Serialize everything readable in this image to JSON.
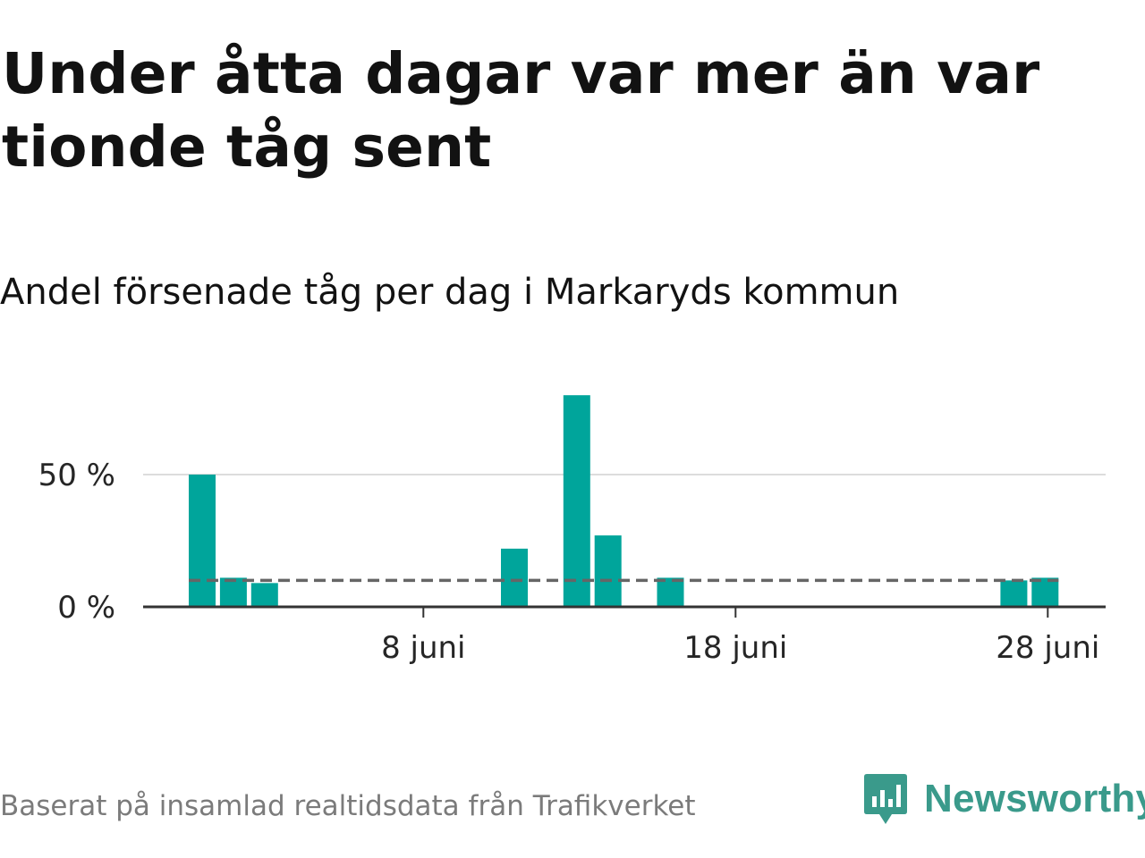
{
  "header": {
    "title": "Under åtta dagar var mer än var tionde tåg sent",
    "subtitle": "Andel försenade tåg per dag i Markaryds kommun"
  },
  "footer": {
    "source": "Baserat på insamlad realtidsdata från Trafikverket",
    "logo_text": "Newsworthy"
  },
  "colors": {
    "bar": "#00a59b",
    "reference_line": "#666666",
    "grid": "#dcdcdc",
    "axis": "#333333",
    "logo": "#3a9a8b"
  },
  "chart_data": {
    "type": "bar",
    "x_unit": "day of June",
    "x": [
      1,
      2,
      3,
      4,
      5,
      6,
      7,
      8,
      9,
      10,
      11,
      12,
      13,
      14,
      15,
      16,
      17,
      18,
      19,
      20,
      21,
      22,
      23,
      24,
      25,
      26,
      27,
      28,
      29,
      30
    ],
    "values": [
      50,
      11,
      9,
      0,
      0,
      0,
      0,
      0,
      0,
      0,
      22,
      0,
      80,
      27,
      0,
      11,
      0,
      0,
      0,
      0,
      0,
      0,
      0,
      0,
      0,
      0,
      10,
      11,
      0,
      0
    ],
    "reference_line": {
      "value": 10,
      "style": "dashed",
      "from_x": 1,
      "to_x": 28
    },
    "y_ticks": [
      {
        "value": 0,
        "label": "0 %"
      },
      {
        "value": 50,
        "label": "50 %"
      }
    ],
    "x_ticks": [
      {
        "value": 8,
        "label": "8 juni"
      },
      {
        "value": 18,
        "label": "18 juni"
      },
      {
        "value": 28,
        "label": "28 juni"
      }
    ],
    "grid": true
  }
}
